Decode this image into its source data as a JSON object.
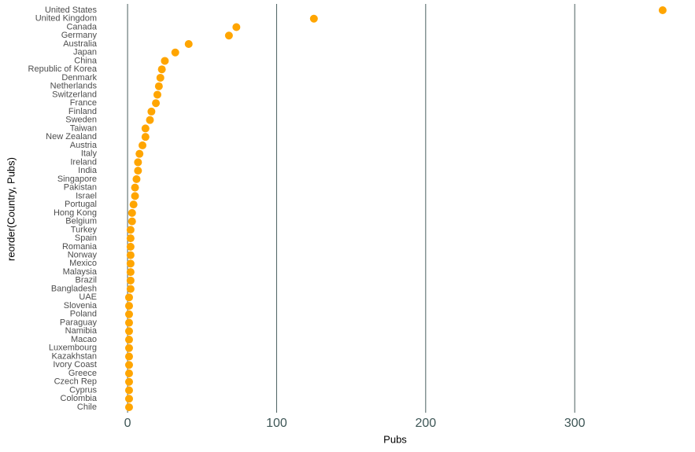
{
  "chart_data": {
    "type": "dot",
    "x_label": "Pubs",
    "y_label": "reorder(Country, Pubs)",
    "color": "#FFA500",
    "grid": true,
    "categories": [
      "United States",
      "United Kingdom",
      "Canada",
      "Germany",
      "Australia",
      "Japan",
      "China",
      "Republic of Korea",
      "Denmark",
      "Netherlands",
      "Switzerland",
      "France",
      "Finland",
      "Sweden",
      "Taiwan",
      "New Zealand",
      "Austria",
      "Italy",
      "Ireland",
      "India",
      "Singapore",
      "Pakistan",
      "Israel",
      "Portugal",
      "Hong Kong",
      "Belgium",
      "Turkey",
      "Spain",
      "Romania",
      "Norway",
      "Mexico",
      "Malaysia",
      "Brazil",
      "Bangladesh",
      "UAE",
      "Slovenia",
      "Poland",
      "Paraguay",
      "Namibia",
      "Macao",
      "Luxembourg",
      "Kazakhstan",
      "Ivory Coast",
      "Greece",
      "Czech Rep",
      "Cyprus",
      "Colombia",
      "Chile"
    ],
    "values": [
      359,
      125,
      73,
      68,
      41,
      32,
      25,
      23,
      22,
      21,
      20,
      19,
      16,
      15,
      12,
      12,
      10,
      8,
      7,
      7,
      6,
      5,
      5,
      4,
      3,
      3,
      2,
      2,
      2,
      2,
      2,
      2,
      2,
      2,
      1,
      1,
      1,
      1,
      1,
      1,
      1,
      1,
      1,
      1,
      1,
      1,
      1,
      1
    ],
    "xlim": [
      -18,
      377
    ],
    "xticks": [
      0,
      100,
      200,
      300
    ]
  }
}
